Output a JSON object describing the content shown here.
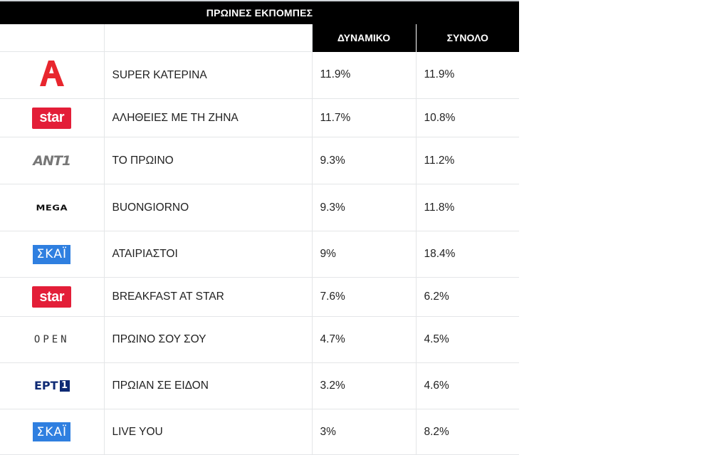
{
  "title": "ΠΡΩΙΝΕΣ ΕΚΠΟΜΠΕΣ",
  "columns": {
    "dynamic": "ΔΥΝΑΜΙΚΟ",
    "total": "ΣΥΝΟΛΟ"
  },
  "rows": [
    {
      "channel_icon": "alpha-logo-icon",
      "show": "SUPER ΚΑΤΕΡΙΝΑ",
      "dynamic": "11.9%",
      "total": "11.9%"
    },
    {
      "channel_icon": "star-logo-icon",
      "logo_text": "star",
      "show": "ΑΛΗΘΕΙΕΣ ΜΕ ΤΗ ΖΗΝΑ",
      "dynamic": "11.7%",
      "total": "10.8%"
    },
    {
      "channel_icon": "ant1-logo-icon",
      "logo_text": "ANT1",
      "show": "ΤΟ ΠΡΩΙΝΟ",
      "dynamic": "9.3%",
      "total": "11.2%"
    },
    {
      "channel_icon": "mega-logo-icon",
      "logo_text": "MEGA",
      "show": "BUONGIORNO",
      "dynamic": "9.3%",
      "total": "11.8%"
    },
    {
      "channel_icon": "skai-logo-icon",
      "logo_text": "ΣΚΑΪ",
      "show": "ΑΤΑΙΡΙΑΣΤΟΙ",
      "dynamic": "9%",
      "total": "18.4%"
    },
    {
      "channel_icon": "star-logo-icon",
      "logo_text": "star",
      "show": "BREAKFAST AT STAR",
      "dynamic": "7.6%",
      "total": "6.2%"
    },
    {
      "channel_icon": "open-logo-icon",
      "logo_text": "OPEN",
      "show": "ΠΡΩΙΝΟ ΣΟΥ ΣΟΥ",
      "dynamic": "4.7%",
      "total": "4.5%"
    },
    {
      "channel_icon": "ert1-logo-icon",
      "logo_text": "ΕΡΤ",
      "show": "ΠΡΩΙΑΝ ΣΕ ΕΙΔΟΝ",
      "dynamic": "3.2%",
      "total": "4.6%"
    },
    {
      "channel_icon": "skai-logo-icon",
      "logo_text": "ΣΚΑΪ",
      "show": "LIVE YOU",
      "dynamic": "3%",
      "total": "8.2%"
    }
  ],
  "colors": {
    "header_bg": "#000000",
    "header_text": "#ffffff",
    "grid_line": "#e4e6e8",
    "alpha_red": "#e8262e",
    "star_red": "#e31e38",
    "skai_blue": "#2f7fe0",
    "ert_blue": "#0e2a74"
  }
}
